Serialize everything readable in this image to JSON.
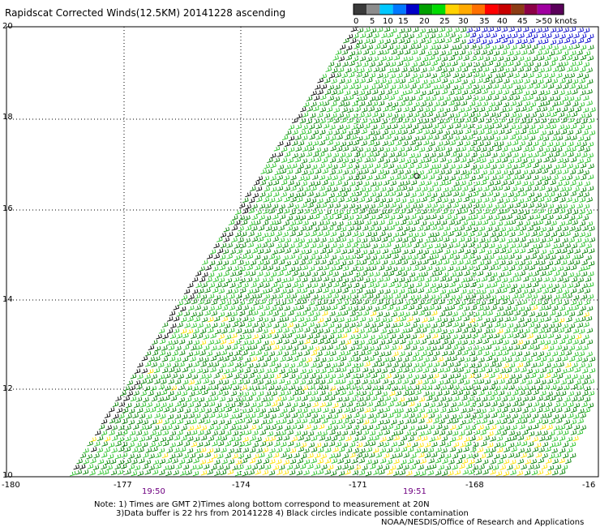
{
  "title": "Rapidscat Corrected Winds(12.5KM) 20141228 ascending",
  "legend": {
    "labels": [
      "0",
      "5",
      "10",
      "15",
      "20",
      "25",
      "30",
      "35",
      "40",
      "45",
      ">50 knots"
    ],
    "colors": [
      "#3a3a3a",
      "#8c8c8c",
      "#00c8ff",
      "#0078ff",
      "#0000c8",
      "#00a000",
      "#00dc00",
      "#ffd200",
      "#ffaa00",
      "#ff7000",
      "#ff0000",
      "#c80000",
      "#8c3c14",
      "#8c0046",
      "#a000a0",
      "#5a005a"
    ]
  },
  "axes": {
    "y_ticks": [
      "20",
      "18",
      "16",
      "14",
      "12",
      "10"
    ],
    "x_ticks": [
      "-180",
      "-177",
      "-174",
      "-171",
      "-168",
      "-16"
    ]
  },
  "times": [
    "19:50",
    "19:51"
  ],
  "notes": {
    "line1": "Note: 1) Times are GMT 2)Times along bottom correspond to measurement at 20N",
    "line2": "3)Data buffer is 22 hrs from 20141228 4) Black circles indicate possible contamination",
    "credit": "NOAA/NESDIS/Office of Research and Applications"
  },
  "colors": {
    "dark_green": "#008000",
    "light_green": "#22c022",
    "yellow": "#ffe100",
    "blue": "#0000cc",
    "black": "#000000"
  }
}
